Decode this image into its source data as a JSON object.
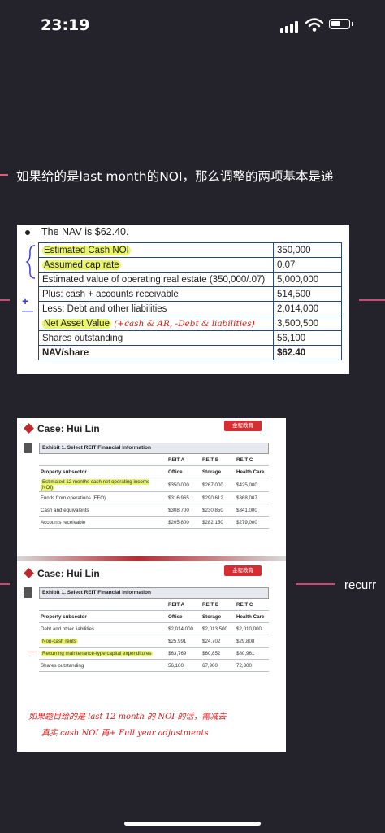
{
  "status": {
    "time": "23:19"
  },
  "note": {
    "text": "如果给的是last month的NOI，那么调整的两项基本是递"
  },
  "nav_card": {
    "title": "The NAV is $62.40.",
    "rows": [
      {
        "label": "Estimated Cash NOI",
        "value": "350,000"
      },
      {
        "label": "Assumed cap rate",
        "value": "0.07"
      },
      {
        "label": "Estimated value of operating real estate (350,000/.07)",
        "value": "5,000,000"
      },
      {
        "label": "Plus: cash + accounts receivable",
        "value": "514,500"
      },
      {
        "label": "Less: Debt and other liabilities",
        "value": "2,014,000"
      },
      {
        "label": "Net Asset Value",
        "value": "3,500,500"
      },
      {
        "label": "Shares outstanding",
        "value": "56,100"
      },
      {
        "label": "NAV/share",
        "value": "$62.40"
      }
    ],
    "handwriting": "(+cash & AR, -Debt & liabilities)",
    "plus": "+",
    "minus": "—"
  },
  "case1": {
    "header": "Case: Hui Lin",
    "logo": "金程教育",
    "exhibit_title": "Exhibit 1. Select REIT Financial Information",
    "columns": [
      "REIT A",
      "REIT B",
      "REIT C"
    ],
    "subcols": [
      "Property subsector",
      "Office",
      "Storage",
      "Health Care"
    ],
    "rows": [
      [
        "Estimated 12 months cash net operating income (NOI)",
        "$350,000",
        "$267,000",
        "$425,000"
      ],
      [
        "Funds from operations (FFO)",
        "$316,965",
        "$290,612",
        "$368,007"
      ],
      [
        "Cash and equivalents",
        "$308,700",
        "$230,850",
        "$341,000"
      ],
      [
        "Accounts receivable",
        "$205,800",
        "$282,150",
        "$279,000"
      ]
    ]
  },
  "case2": {
    "header": "Case: Hui Lin",
    "logo": "金程教育",
    "exhibit_title": "Exhibit 1. Select REIT Financial Information",
    "columns": [
      "REIT A",
      "REIT B",
      "REIT C"
    ],
    "subcols": [
      "Property subsector",
      "Office",
      "Storage",
      "Health Care"
    ],
    "rows": [
      [
        "Debt and other liabilities",
        "$2,014,000",
        "$2,013,500",
        "$2,010,000"
      ],
      [
        "Non-cash rents",
        "$25,991",
        "$24,702",
        "$29,808"
      ],
      [
        "Recurring maintenance-type capital expenditures",
        "$63,769",
        "$60,852",
        "$80,961"
      ],
      [
        "Shares outstanding",
        "56,100",
        "67,900",
        "72,300"
      ]
    ],
    "handwriting_line1": "如果题目给的是 last 12 month 的 NOI 的话，需减去",
    "handwriting_line2": "真实 cash NOI 再+ Full year adjustments",
    "circle_minus": "—"
  },
  "right_text": "recurr"
}
